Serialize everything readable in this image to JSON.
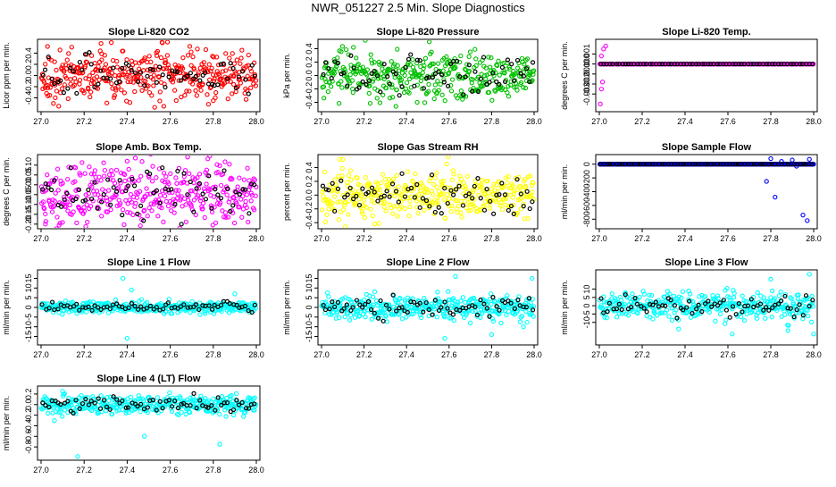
{
  "figure_title": "NWR_051227  2.5 Min. Slope Diagnostics",
  "colors": {
    "axis": "#000000",
    "overlay": "#000000"
  },
  "chart_data": [
    {
      "type": "scatter",
      "title": "Slope Li-820 CO2",
      "xlabel": "",
      "ylabel": "Licor ppm per min.",
      "color": "#ff0000",
      "xlim": [
        27.0,
        28.0
      ],
      "ylim": [
        -0.6,
        0.6
      ],
      "xticks": [
        "27.0",
        "27.2",
        "27.4",
        "27.6",
        "27.8",
        "28.0"
      ],
      "yticks": [
        "-0.4",
        "-0.2",
        "0.0",
        "0.2",
        "0.4"
      ],
      "spread": 0.22,
      "outliers": [
        [
          27.57,
          -0.55
        ],
        [
          27.03,
          0.52
        ],
        [
          27.8,
          -0.45
        ]
      ]
    },
    {
      "type": "scatter",
      "title": "Slope Li-820 Pressure",
      "xlabel": "",
      "ylabel": "kPa per min.",
      "color": "#00c000",
      "xlim": [
        27.0,
        28.0
      ],
      "ylim": [
        -0.5,
        0.5
      ],
      "xticks": [
        "27.0",
        "27.2",
        "27.4",
        "27.6",
        "27.8",
        "28.0"
      ],
      "yticks": [
        "-0.4",
        "-0.2",
        "0.0",
        "0.2",
        "0.4"
      ],
      "spread": 0.18,
      "outliers": [
        [
          27.35,
          -0.46
        ],
        [
          27.45,
          -0.4
        ],
        [
          27.15,
          0.42
        ]
      ]
    },
    {
      "type": "scatter",
      "title": "Slope Li-820 Temp.",
      "xlabel": "",
      "ylabel": "degrees C per min.",
      "color": "#ff00ff",
      "xlim": [
        27.0,
        28.0
      ],
      "ylim": [
        -0.0045,
        0.0022
      ],
      "xticks": [
        "27.0",
        "27.2",
        "27.4",
        "27.6",
        "27.8",
        "28.0"
      ],
      "yticks": [
        "-0.003",
        "-0.002",
        "-0.001",
        "0.000",
        "0.001"
      ],
      "spread": 0.0,
      "outliers": [
        [
          27.005,
          -0.004
        ],
        [
          27.01,
          -0.0025
        ],
        [
          27.015,
          -0.0018
        ],
        [
          27.02,
          0.0015
        ],
        [
          27.03,
          0.0018
        ],
        [
          27.01,
          0.0008
        ]
      ]
    },
    {
      "type": "scatter",
      "title": "Slope Amb. Box Temp.",
      "xlabel": "",
      "ylabel": "degrees C per min.",
      "color": "#ff00ff",
      "xlim": [
        27.0,
        28.0
      ],
      "ylim": [
        -0.21,
        0.14
      ],
      "xticks": [
        "27.0",
        "27.2",
        "27.4",
        "27.6",
        "27.8",
        "28.0"
      ],
      "yticks": [
        "-0.20",
        "-0.15",
        "-0.10",
        "-0.05",
        "0.00",
        "0.05",
        "0.10"
      ],
      "spread": 0.08,
      "outliers": [
        [
          27.02,
          -0.2
        ],
        [
          27.4,
          0.12
        ]
      ]
    },
    {
      "type": "scatter",
      "title": "Slope Gas Stream RH",
      "xlabel": "",
      "ylabel": "percent per min.",
      "color": "#ffff00",
      "xlim": [
        27.0,
        28.0
      ],
      "ylim": [
        -0.45,
        0.55
      ],
      "xticks": [
        "27.0",
        "27.2",
        "27.4",
        "27.6",
        "27.8",
        "28.0"
      ],
      "yticks": [
        "-0.4",
        "-0.2",
        "0.0",
        "0.2",
        "0.4"
      ],
      "spread": 0.18,
      "outliers": [
        [
          27.1,
          0.52
        ],
        [
          27.25,
          -0.42
        ]
      ]
    },
    {
      "type": "scatter",
      "title": "Slope Sample Flow",
      "xlabel": "",
      "ylabel": "ml/min per min.",
      "color": "#0000ff",
      "xlim": [
        27.0,
        28.0
      ],
      "ylim": [
        -900,
        100
      ],
      "xticks": [
        "27.0",
        "27.2",
        "27.4",
        "27.6",
        "27.8",
        "28.0"
      ],
      "yticks": [
        "-800",
        "-600",
        "-400",
        "-200",
        "0"
      ],
      "spread": 0.0,
      "outliers": [
        [
          27.78,
          -250
        ],
        [
          27.82,
          -480
        ],
        [
          27.95,
          -740
        ],
        [
          27.97,
          -820
        ],
        [
          27.8,
          80
        ],
        [
          27.9,
          60
        ],
        [
          27.98,
          70
        ],
        [
          27.92,
          -30
        ],
        [
          27.85,
          40
        ]
      ]
    },
    {
      "type": "scatter",
      "title": "Slope Line 1 Flow",
      "xlabel": "",
      "ylabel": "ml/min per min.",
      "color": "#00ffff",
      "xlim": [
        27.0,
        28.0
      ],
      "ylim": [
        -18,
        18
      ],
      "xticks": [
        "27.0",
        "27.2",
        "27.4",
        "27.6",
        "27.8",
        "28.0"
      ],
      "yticks": [
        "-15",
        "-10",
        "-5",
        "0",
        "5",
        "10",
        "15"
      ],
      "spread": 1.5,
      "outliers": [
        [
          27.4,
          -16
        ],
        [
          27.38,
          15
        ],
        [
          27.42,
          9
        ],
        [
          27.9,
          7
        ]
      ]
    },
    {
      "type": "scatter",
      "title": "Slope Line 2 Flow",
      "xlabel": "",
      "ylabel": "ml/min per min.",
      "color": "#00ffff",
      "xlim": [
        27.0,
        28.0
      ],
      "ylim": [
        -18,
        18
      ],
      "xticks": [
        "27.0",
        "27.2",
        "27.4",
        "27.6",
        "27.8",
        "28.0"
      ],
      "yticks": [
        "-15",
        "-10",
        "-5",
        "0",
        "5",
        "10",
        "15"
      ],
      "spread": 3.0,
      "outliers": [
        [
          27.58,
          -16
        ],
        [
          27.63,
          16
        ],
        [
          27.8,
          -14
        ],
        [
          27.99,
          15
        ],
        [
          27.7,
          -8
        ],
        [
          27.95,
          -10
        ]
      ]
    },
    {
      "type": "scatter",
      "title": "Slope Line 3 Flow",
      "xlabel": "",
      "ylabel": "ml/min per min.",
      "color": "#00ffff",
      "xlim": [
        27.0,
        28.0
      ],
      "ylim": [
        -22,
        20
      ],
      "xticks": [
        "27.0",
        "27.2",
        "27.4",
        "27.6",
        "27.8",
        "28.0"
      ],
      "yticks": [
        "-10",
        "-5",
        "0",
        "5",
        "10"
      ],
      "spread": 4.0,
      "outliers": [
        [
          27.37,
          -14
        ],
        [
          27.62,
          -17
        ],
        [
          27.8,
          16
        ],
        [
          27.88,
          -15
        ],
        [
          27.98,
          19
        ],
        [
          28.0,
          -17
        ]
      ]
    },
    {
      "type": "scatter",
      "title": "Slope Line 4 (LT) Flow",
      "xlabel": "",
      "ylabel": "ml/min per min.",
      "color": "#00ffff",
      "xlim": [
        27.0,
        28.0
      ],
      "ylim": [
        -1.0,
        0.3
      ],
      "xticks": [
        "27.0",
        "27.2",
        "27.4",
        "27.6",
        "27.8",
        "28.0"
      ],
      "yticks": [
        "-0.8",
        "-0.6",
        "-0.4",
        "-0.2",
        "0.0",
        "0.2"
      ],
      "spread": 0.09,
      "outliers": [
        [
          27.17,
          -0.98
        ],
        [
          27.48,
          -0.6
        ],
        [
          27.83,
          -0.75
        ],
        [
          27.1,
          0.25
        ]
      ]
    }
  ]
}
